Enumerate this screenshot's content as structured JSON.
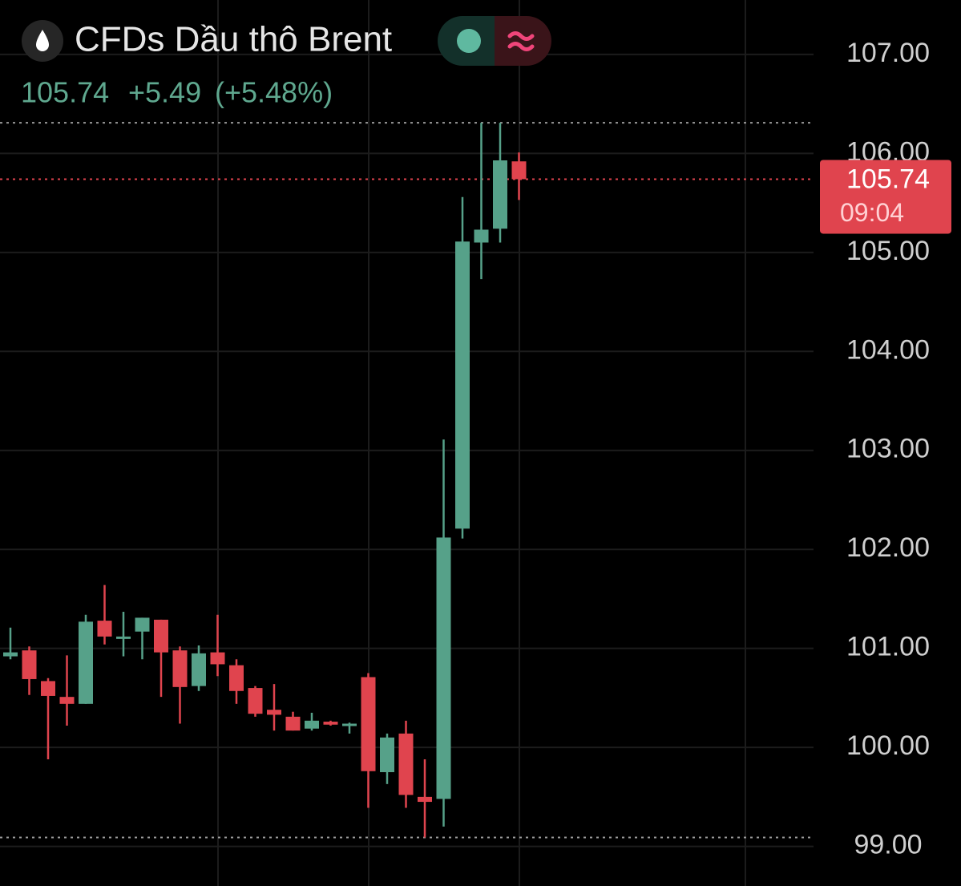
{
  "chart_data": {
    "type": "candlestick",
    "title": "CFDs Dầu thô Brent",
    "last_price": 105.74,
    "change_label": "+5.49",
    "change_pct_label": "(+5.48%)",
    "time_label": "09:04",
    "up_color": "#56a189",
    "down_color": "#e0444e",
    "open": [
      100.92,
      100.98,
      100.67,
      100.51,
      100.44,
      101.28,
      101.1,
      101.17,
      101.29,
      100.98,
      100.62,
      100.96,
      100.83,
      100.6,
      100.38,
      100.31,
      100.19,
      100.26,
      100.22,
      100.71,
      99.75,
      100.14,
      99.5,
      99.48,
      102.21,
      105.1,
      105.24,
      105.92
    ],
    "high": [
      101.21,
      101.02,
      100.7,
      100.93,
      101.34,
      101.64,
      101.37,
      101.31,
      101.29,
      101.02,
      101.03,
      101.34,
      100.89,
      100.62,
      100.64,
      100.36,
      100.35,
      100.27,
      100.25,
      100.75,
      100.14,
      100.27,
      99.88,
      103.11,
      105.56,
      106.31,
      106.31,
      106.01
    ],
    "low": [
      100.89,
      100.53,
      99.88,
      100.22,
      100.44,
      101.04,
      100.92,
      100.89,
      100.51,
      100.24,
      100.57,
      100.72,
      100.44,
      100.31,
      100.17,
      100.17,
      100.17,
      100.22,
      100.14,
      99.39,
      99.63,
      99.39,
      99.09,
      99.2,
      102.11,
      104.73,
      105.1,
      105.53
    ],
    "close": [
      100.96,
      100.69,
      100.52,
      100.44,
      101.27,
      101.12,
      101.12,
      101.31,
      100.96,
      100.61,
      100.95,
      100.84,
      100.57,
      100.34,
      100.33,
      100.17,
      100.27,
      100.23,
      100.24,
      99.76,
      100.1,
      99.52,
      99.45,
      102.12,
      105.11,
      105.23,
      105.93,
      105.74
    ],
    "session_high": 106.31,
    "session_low": 99.09,
    "ylim": [
      98.6,
      107.55
    ],
    "yticks": [
      {
        "value": 99,
        "label": "99.00"
      },
      {
        "value": 100,
        "label": "100.00"
      },
      {
        "value": 101,
        "label": "101.00"
      },
      {
        "value": 102,
        "label": "102.00"
      },
      {
        "value": 103,
        "label": "103.00"
      },
      {
        "value": 104,
        "label": "104.00"
      },
      {
        "value": 105,
        "label": "105.00"
      },
      {
        "value": 106,
        "label": "106.00"
      },
      {
        "value": 107,
        "label": "107.00"
      }
    ],
    "grid": true
  }
}
